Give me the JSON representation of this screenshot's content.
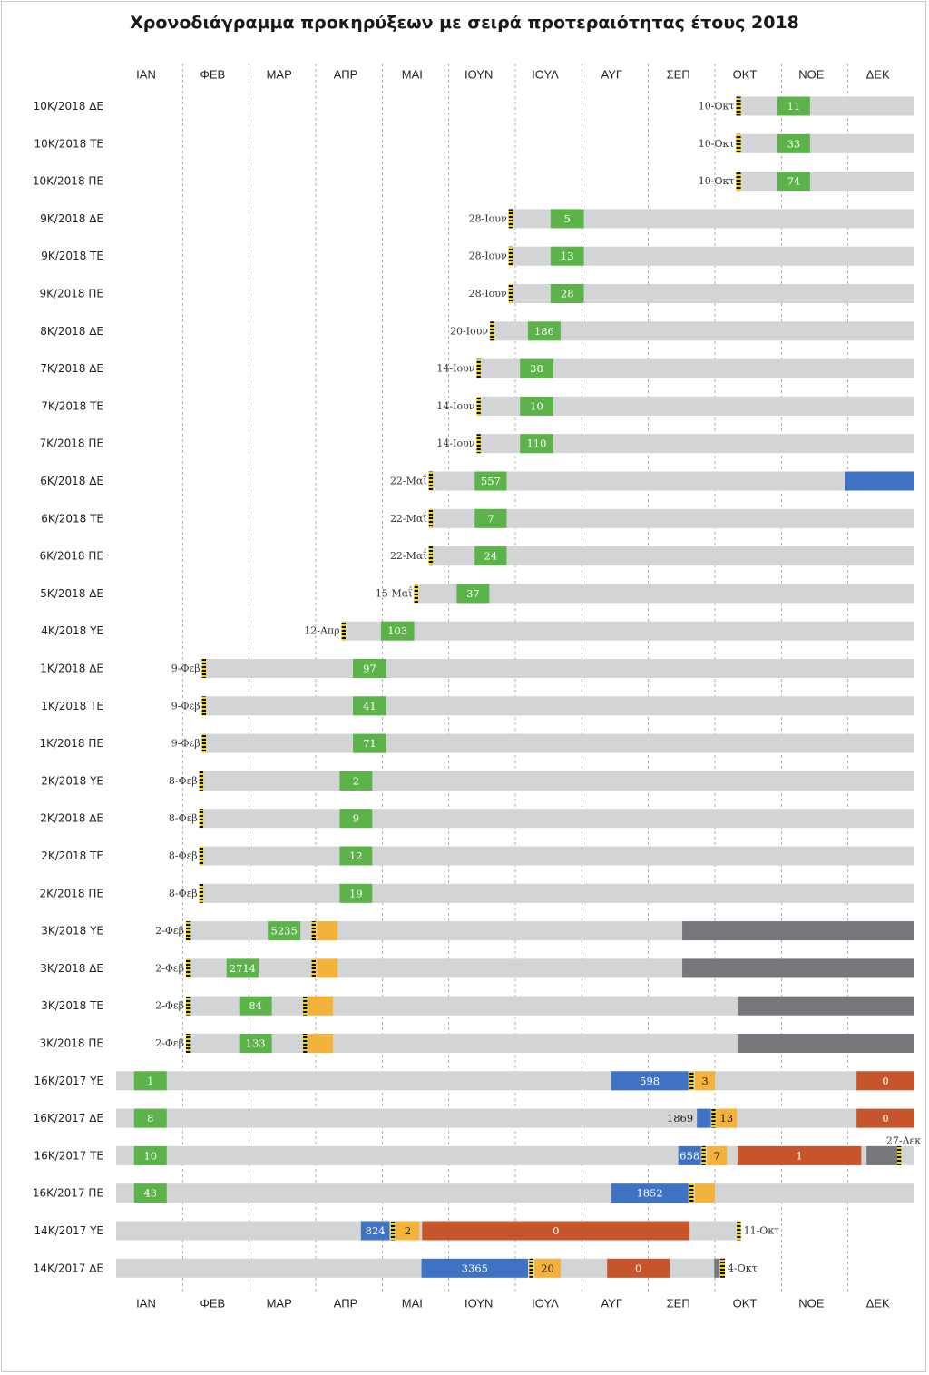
{
  "title": "Χρονοδιάγραμμα προκηρύξεων με σειρά προτεραιότητας έτους 2018",
  "colors": {
    "background_bar": "#d3d4d6",
    "green": "#5bb349",
    "orange": "#f3b23a",
    "blue": "#3f72c2",
    "red": "#c7552b",
    "gray": "#77767b",
    "marker_yellow": "#f5d000",
    "marker_black": "#111111"
  },
  "chart_data": {
    "type": "bar",
    "months": [
      "ΙΑΝ",
      "ΦΕΒ",
      "ΜΑΡ",
      "ΑΠΡ",
      "ΜΑΙ",
      "ΙΟΥΝ",
      "ΙΟΥΛ",
      "ΑΥΓ",
      "ΣΕΠ",
      "ΟΚΤ",
      "ΝΟΕ",
      "ΔΕΚ"
    ],
    "rows": [
      {
        "label": "10Κ/2018 ΔΕ",
        "start_label": "10-Οκτ",
        "bar": [
          9.32,
          12
        ],
        "segments": [
          {
            "range": [
              9.32,
              9.39
            ],
            "color": "marker"
          },
          {
            "range": [
              9.94,
              10.43
            ],
            "color": "green",
            "label": "11"
          }
        ]
      },
      {
        "label": "10Κ/2018 ΤΕ",
        "start_label": "10-Οκτ",
        "bar": [
          9.32,
          12
        ],
        "segments": [
          {
            "range": [
              9.32,
              9.39
            ],
            "color": "marker"
          },
          {
            "range": [
              9.94,
              10.43
            ],
            "color": "green",
            "label": "33"
          }
        ]
      },
      {
        "label": "10Κ/2018 ΠΕ",
        "start_label": "10-Οκτ",
        "bar": [
          9.32,
          12
        ],
        "segments": [
          {
            "range": [
              9.32,
              9.39
            ],
            "color": "marker"
          },
          {
            "range": [
              9.94,
              10.43
            ],
            "color": "green",
            "label": "74"
          }
        ]
      },
      {
        "label": "9Κ/2018 ΔΕ",
        "start_label": "28-Ιουν",
        "bar": [
          5.9,
          12
        ],
        "segments": [
          {
            "range": [
              5.9,
              5.96
            ],
            "color": "marker"
          },
          {
            "range": [
              6.53,
              7.03
            ],
            "color": "green",
            "label": "5"
          }
        ]
      },
      {
        "label": "9Κ/2018 ΤΕ",
        "start_label": "28-Ιουν",
        "bar": [
          5.9,
          12
        ],
        "segments": [
          {
            "range": [
              5.9,
              5.96
            ],
            "color": "marker"
          },
          {
            "range": [
              6.53,
              7.03
            ],
            "color": "green",
            "label": "13"
          }
        ]
      },
      {
        "label": "9Κ/2018 ΠΕ",
        "start_label": "28-Ιουν",
        "bar": [
          5.9,
          12
        ],
        "segments": [
          {
            "range": [
              5.9,
              5.96
            ],
            "color": "marker"
          },
          {
            "range": [
              6.53,
              7.03
            ],
            "color": "green",
            "label": "28"
          }
        ]
      },
      {
        "label": "8Κ/2018 ΔΕ",
        "start_label": "20-Ιουν",
        "bar": [
          5.62,
          12
        ],
        "segments": [
          {
            "range": [
              5.62,
              5.68
            ],
            "color": "marker"
          },
          {
            "range": [
              6.19,
              6.68
            ],
            "color": "green",
            "label": "186"
          }
        ]
      },
      {
        "label": "7Κ/2018 ΔΕ",
        "start_label": "14-Ιουν",
        "bar": [
          5.42,
          12
        ],
        "segments": [
          {
            "range": [
              5.42,
              5.48
            ],
            "color": "marker"
          },
          {
            "range": [
              6.07,
              6.57
            ],
            "color": "green",
            "label": "38"
          }
        ]
      },
      {
        "label": "7Κ/2018 ΤΕ",
        "start_label": "14-Ιουν",
        "bar": [
          5.42,
          12
        ],
        "segments": [
          {
            "range": [
              5.42,
              5.48
            ],
            "color": "marker"
          },
          {
            "range": [
              6.07,
              6.57
            ],
            "color": "green",
            "label": "10"
          }
        ]
      },
      {
        "label": "7Κ/2018 ΠΕ",
        "start_label": "14-Ιουν",
        "bar": [
          5.42,
          12
        ],
        "segments": [
          {
            "range": [
              5.42,
              5.48
            ],
            "color": "marker"
          },
          {
            "range": [
              6.07,
              6.57
            ],
            "color": "green",
            "label": "110"
          }
        ]
      },
      {
        "label": "6Κ/2018 ΔΕ",
        "start_label": "22-Μαΐ",
        "bar": [
          4.7,
          12
        ],
        "segments": [
          {
            "range": [
              4.7,
              4.76
            ],
            "color": "marker"
          },
          {
            "range": [
              5.39,
              5.87
            ],
            "color": "green",
            "label": "557"
          },
          {
            "range": [
              10.95,
              12
            ],
            "color": "blue"
          }
        ]
      },
      {
        "label": "6Κ/2018 ΤΕ",
        "start_label": "22-Μαΐ",
        "bar": [
          4.7,
          12
        ],
        "segments": [
          {
            "range": [
              4.7,
              4.76
            ],
            "color": "marker"
          },
          {
            "range": [
              5.39,
              5.87
            ],
            "color": "green",
            "label": "7"
          }
        ]
      },
      {
        "label": "6Κ/2018 ΠΕ",
        "start_label": "22-Μαΐ",
        "bar": [
          4.7,
          12
        ],
        "segments": [
          {
            "range": [
              4.7,
              4.76
            ],
            "color": "marker"
          },
          {
            "range": [
              5.39,
              5.87
            ],
            "color": "green",
            "label": "24"
          }
        ]
      },
      {
        "label": "5Κ/2018 ΔΕ",
        "start_label": "15-Μαΐ",
        "bar": [
          4.48,
          12
        ],
        "segments": [
          {
            "range": [
              4.48,
              4.54
            ],
            "color": "marker"
          },
          {
            "range": [
              5.12,
              5.61
            ],
            "color": "green",
            "label": "37"
          }
        ]
      },
      {
        "label": "4Κ/2018 ΥΕ",
        "start_label": "12-Απρ",
        "bar": [
          3.39,
          12
        ],
        "segments": [
          {
            "range": [
              3.39,
              3.45
            ],
            "color": "marker"
          },
          {
            "range": [
              3.98,
              4.48
            ],
            "color": "green",
            "label": "103"
          }
        ]
      },
      {
        "label": "1Κ/2018 ΔΕ",
        "start_label": "9-Φεβ",
        "bar": [
          1.29,
          12
        ],
        "segments": [
          {
            "range": [
              1.29,
              1.35
            ],
            "color": "marker"
          },
          {
            "range": [
              3.56,
              4.06
            ],
            "color": "green",
            "label": "97"
          }
        ]
      },
      {
        "label": "1Κ/2018 ΤΕ",
        "start_label": "9-Φεβ",
        "bar": [
          1.29,
          12
        ],
        "segments": [
          {
            "range": [
              1.29,
              1.35
            ],
            "color": "marker"
          },
          {
            "range": [
              3.56,
              4.06
            ],
            "color": "green",
            "label": "41"
          }
        ]
      },
      {
        "label": "1Κ/2018 ΠΕ",
        "start_label": "9-Φεβ",
        "bar": [
          1.29,
          12
        ],
        "segments": [
          {
            "range": [
              1.29,
              1.35
            ],
            "color": "marker"
          },
          {
            "range": [
              3.56,
              4.06
            ],
            "color": "green",
            "label": "71"
          }
        ]
      },
      {
        "label": "2Κ/2018 ΥΕ",
        "start_label": "8-Φεβ",
        "bar": [
          1.25,
          12
        ],
        "segments": [
          {
            "range": [
              1.25,
              1.31
            ],
            "color": "marker"
          },
          {
            "range": [
              3.36,
              3.85
            ],
            "color": "green",
            "label": "2"
          }
        ]
      },
      {
        "label": "2Κ/2018 ΔΕ",
        "start_label": "8-Φεβ",
        "bar": [
          1.25,
          12
        ],
        "segments": [
          {
            "range": [
              1.25,
              1.31
            ],
            "color": "marker"
          },
          {
            "range": [
              3.36,
              3.85
            ],
            "color": "green",
            "label": "9"
          }
        ]
      },
      {
        "label": "2Κ/2018 ΤΕ",
        "start_label": "8-Φεβ",
        "bar": [
          1.25,
          12
        ],
        "segments": [
          {
            "range": [
              1.25,
              1.31
            ],
            "color": "marker"
          },
          {
            "range": [
              3.36,
              3.85
            ],
            "color": "green",
            "label": "12"
          }
        ]
      },
      {
        "label": "2Κ/2018 ΠΕ",
        "start_label": "8-Φεβ",
        "bar": [
          1.25,
          12
        ],
        "segments": [
          {
            "range": [
              1.25,
              1.31
            ],
            "color": "marker"
          },
          {
            "range": [
              3.36,
              3.85
            ],
            "color": "green",
            "label": "19"
          }
        ]
      },
      {
        "label": "3Κ/2018 ΥΕ",
        "start_label": "2-Φεβ",
        "bar": [
          1.05,
          12
        ],
        "segments": [
          {
            "range": [
              1.05,
              1.11
            ],
            "color": "marker"
          },
          {
            "range": [
              2.28,
              2.77
            ],
            "color": "green",
            "label": "5235"
          },
          {
            "range": [
              2.94,
              3.0
            ],
            "color": "marker"
          },
          {
            "range": [
              3.02,
              3.33
            ],
            "color": "orange"
          },
          {
            "range": [
              8.51,
              12
            ],
            "color": "gray"
          }
        ]
      },
      {
        "label": "3Κ/2018 ΔΕ",
        "start_label": "2-Φεβ",
        "bar": [
          1.05,
          12
        ],
        "segments": [
          {
            "range": [
              1.05,
              1.11
            ],
            "color": "marker"
          },
          {
            "range": [
              1.66,
              2.14
            ],
            "color": "green",
            "label": "2714"
          },
          {
            "range": [
              2.94,
              3.0
            ],
            "color": "marker"
          },
          {
            "range": [
              3.02,
              3.33
            ],
            "color": "orange"
          },
          {
            "range": [
              8.51,
              12
            ],
            "color": "gray"
          }
        ]
      },
      {
        "label": "3Κ/2018 ΤΕ",
        "start_label": "2-Φεβ",
        "bar": [
          1.05,
          12
        ],
        "segments": [
          {
            "range": [
              1.05,
              1.11
            ],
            "color": "marker"
          },
          {
            "range": [
              1.85,
              2.34
            ],
            "color": "green",
            "label": "84"
          },
          {
            "range": [
              2.81,
              2.87
            ],
            "color": "marker"
          },
          {
            "range": [
              2.89,
              3.26
            ],
            "color": "orange"
          },
          {
            "range": [
              9.34,
              12
            ],
            "color": "gray"
          }
        ]
      },
      {
        "label": "3Κ/2018 ΠΕ",
        "start_label": "2-Φεβ",
        "bar": [
          1.05,
          12
        ],
        "segments": [
          {
            "range": [
              1.05,
              1.11
            ],
            "color": "marker"
          },
          {
            "range": [
              1.85,
              2.34
            ],
            "color": "green",
            "label": "133"
          },
          {
            "range": [
              2.81,
              2.87
            ],
            "color": "marker"
          },
          {
            "range": [
              2.89,
              3.26
            ],
            "color": "orange"
          },
          {
            "range": [
              9.34,
              12
            ],
            "color": "gray"
          }
        ]
      },
      {
        "label": "16Κ/2017 ΥΕ",
        "start_label": "",
        "bar": [
          0,
          12
        ],
        "segments": [
          {
            "range": [
              0.27,
              0.76
            ],
            "color": "green",
            "label": "1"
          },
          {
            "range": [
              7.44,
              8.6
            ],
            "color": "blue",
            "label": "598"
          },
          {
            "range": [
              8.62,
              8.68
            ],
            "color": "marker"
          },
          {
            "range": [
              8.7,
              9.0
            ],
            "color": "orange",
            "label": "3"
          },
          {
            "range": [
              11.13,
              12
            ],
            "color": "red",
            "label": "0"
          }
        ]
      },
      {
        "label": "16Κ/2017 ΔΕ",
        "start_label": "",
        "bar": [
          0,
          12
        ],
        "segments": [
          {
            "range": [
              0.27,
              0.76
            ],
            "color": "green",
            "label": "8"
          },
          {
            "range": [
              8.73,
              8.94
            ],
            "color": "blue",
            "label_outside_left": "1869"
          },
          {
            "range": [
              8.95,
              9.01
            ],
            "color": "marker"
          },
          {
            "range": [
              9.02,
              9.33
            ],
            "color": "orange",
            "label": "13"
          },
          {
            "range": [
              11.13,
              12
            ],
            "color": "red",
            "label": "0"
          }
        ]
      },
      {
        "label": "16Κ/2017 ΤΕ",
        "start_label": "",
        "end_label": "27-Δεκ",
        "bar": [
          0,
          12
        ],
        "segments": [
          {
            "range": [
              0.27,
              0.76
            ],
            "color": "green",
            "label": "10"
          },
          {
            "range": [
              8.45,
              8.79
            ],
            "color": "blue",
            "label": "658"
          },
          {
            "range": [
              8.8,
              8.86
            ],
            "color": "marker"
          },
          {
            "range": [
              8.88,
              9.18
            ],
            "color": "orange",
            "label": "7"
          },
          {
            "range": [
              9.34,
              11.2
            ],
            "color": "red",
            "label": "1"
          },
          {
            "range": [
              11.28,
              11.74
            ],
            "color": "gray"
          },
          {
            "range": [
              11.74,
              11.8
            ],
            "color": "marker"
          }
        ]
      },
      {
        "label": "16Κ/2017 ΠΕ",
        "start_label": "",
        "bar": [
          0,
          12
        ],
        "segments": [
          {
            "range": [
              0.27,
              0.76
            ],
            "color": "green",
            "label": "43"
          },
          {
            "range": [
              7.44,
              8.6
            ],
            "color": "blue",
            "label": "1852"
          },
          {
            "range": [
              8.62,
              8.68
            ],
            "color": "marker"
          },
          {
            "range": [
              8.7,
              9.0
            ],
            "color": "orange"
          }
        ]
      },
      {
        "label": "14Κ/2017 ΥΕ",
        "start_label": "",
        "end_label": "11-Οκτ",
        "bar": [
          0,
          9.39
        ],
        "segments": [
          {
            "range": [
              3.68,
              4.11
            ],
            "color": "blue",
            "label": "824"
          },
          {
            "range": [
              4.13,
              4.19
            ],
            "color": "marker"
          },
          {
            "range": [
              4.21,
              4.56
            ],
            "color": "orange",
            "label": "2"
          },
          {
            "range": [
              4.6,
              8.62
            ],
            "color": "red",
            "label": "0"
          },
          {
            "range": [
              9.33,
              9.39
            ],
            "color": "marker"
          }
        ]
      },
      {
        "label": "14Κ/2017 ΔΕ",
        "start_label": "",
        "end_label": "4-Οκτ",
        "bar": [
          0,
          9.15
        ],
        "segments": [
          {
            "range": [
              4.59,
              6.19
            ],
            "color": "blue",
            "label": "3365"
          },
          {
            "range": [
              6.21,
              6.27
            ],
            "color": "marker"
          },
          {
            "range": [
              6.29,
              6.68
            ],
            "color": "orange",
            "label": "20"
          },
          {
            "range": [
              7.38,
              8.32
            ],
            "color": "red",
            "label": "0"
          },
          {
            "range": [
              8.99,
              9.07
            ],
            "color": "gray"
          },
          {
            "range": [
              9.08,
              9.15
            ],
            "color": "marker"
          }
        ]
      }
    ]
  }
}
